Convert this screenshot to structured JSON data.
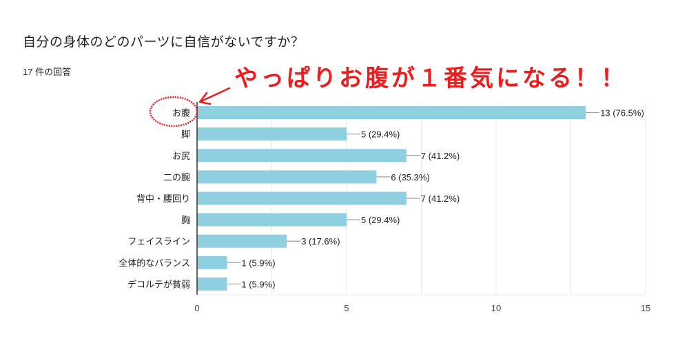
{
  "header": {
    "title": "自分の身体のどのパーツに自信がないですか？",
    "response_count": "17 件の回答"
  },
  "annotation": {
    "text": "やっぱりお腹が１番気になる！！",
    "color": "#ee1c1c",
    "circled_label": "お腹"
  },
  "colors": {
    "bar": "#8ecfe0",
    "grid": "#ebebeb",
    "axis": "#333333",
    "annotation": "#ee1c1c"
  },
  "chart_data": {
    "type": "bar",
    "orientation": "horizontal",
    "title": "自分の身体のどのパーツに自信がないですか？",
    "subtitle": "17 件の回答",
    "categories": [
      "お腹",
      "脚",
      "お尻",
      "二の腕",
      "背中・腰回り",
      "胸",
      "フェイスライン",
      "全体的なバランス",
      "デコルテが貧弱"
    ],
    "values": [
      13,
      5,
      7,
      6,
      7,
      5,
      3,
      1,
      1
    ],
    "percentages": [
      76.5,
      29.4,
      41.2,
      35.3,
      41.2,
      29.4,
      17.6,
      5.9,
      5.9
    ],
    "data_labels": [
      "13 (76.5%)",
      "5 (29.4%)",
      "7 (41.2%)",
      "6 (35.3%)",
      "7 (41.2%)",
      "5 (29.4%)",
      "3 (17.6%)",
      "1 (5.9%)",
      "1 (5.9%)"
    ],
    "xlabel": "",
    "ylabel": "",
    "xlim": [
      0,
      15
    ],
    "xticks": [
      0,
      5,
      10,
      15
    ],
    "grid": true,
    "legend": "none"
  }
}
